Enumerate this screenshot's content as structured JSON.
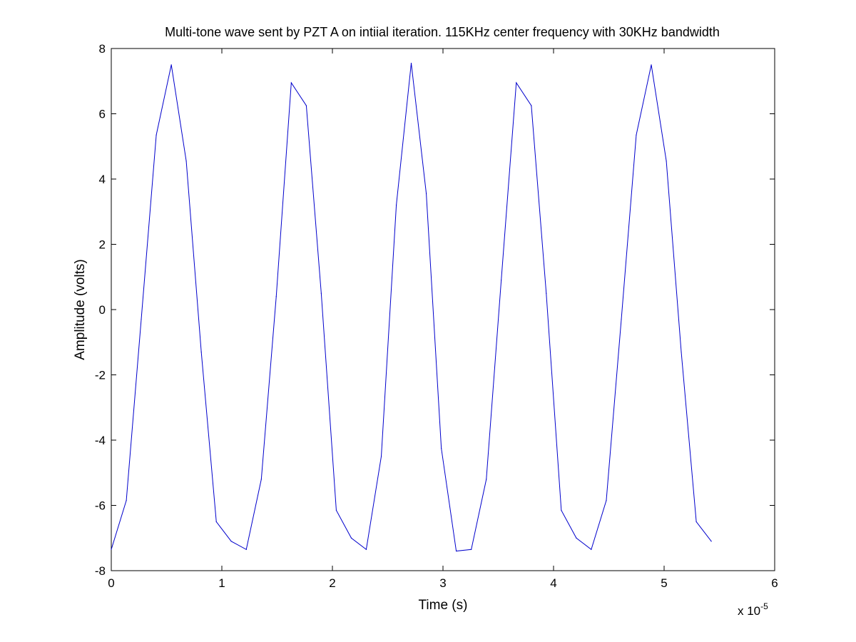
{
  "chart_data": {
    "type": "line",
    "title": "Multi-tone wave sent by PZT A on intiial iteration. 115KHz center frequency with 30KHz bandwidth",
    "xlabel": "Time (s)",
    "ylabel": "Amplitude (volts)",
    "x_multiplier_label": "x 10",
    "x_multiplier_exponent": "-5",
    "xlim": [
      0,
      6
    ],
    "ylim": [
      -8,
      8
    ],
    "xticks": [
      0,
      1,
      2,
      3,
      4,
      5,
      6
    ],
    "yticks": [
      -8,
      -6,
      -4,
      -2,
      0,
      2,
      4,
      6,
      8
    ],
    "grid": false,
    "line_color": "#0000cc",
    "series": [
      {
        "x": [
          0,
          0.136,
          0.271,
          0.407,
          0.543,
          0.678,
          0.814,
          0.95,
          1.085,
          1.221,
          1.357,
          1.492,
          1.628,
          1.764,
          1.899,
          2.035,
          2.171,
          2.306,
          2.442,
          2.578,
          2.713,
          2.849,
          2.985,
          3.12,
          3.256,
          3.392,
          3.527,
          3.663,
          3.799,
          3.934,
          4.07,
          4.206,
          4.341,
          4.477,
          4.613,
          4.748,
          4.884,
          5.02,
          5.155,
          5.291,
          5.427
        ],
        "values": [
          -7.35,
          -5.85,
          -0.3,
          5.35,
          7.5,
          4.55,
          -1.3,
          -6.5,
          -7.1,
          -7.35,
          -5.2,
          0.4,
          6.95,
          6.25,
          0.5,
          -6.15,
          -7.0,
          -7.35,
          -4.5,
          3.2,
          7.55,
          3.55,
          -4.25,
          -7.4,
          -7.35,
          -5.2,
          0.9,
          6.95,
          6.25,
          0.5,
          -6.15,
          -7.0,
          -7.35,
          -5.85,
          -0.3,
          5.35,
          7.5,
          4.55,
          -1.3,
          -6.5,
          -7.1
        ]
      }
    ]
  }
}
